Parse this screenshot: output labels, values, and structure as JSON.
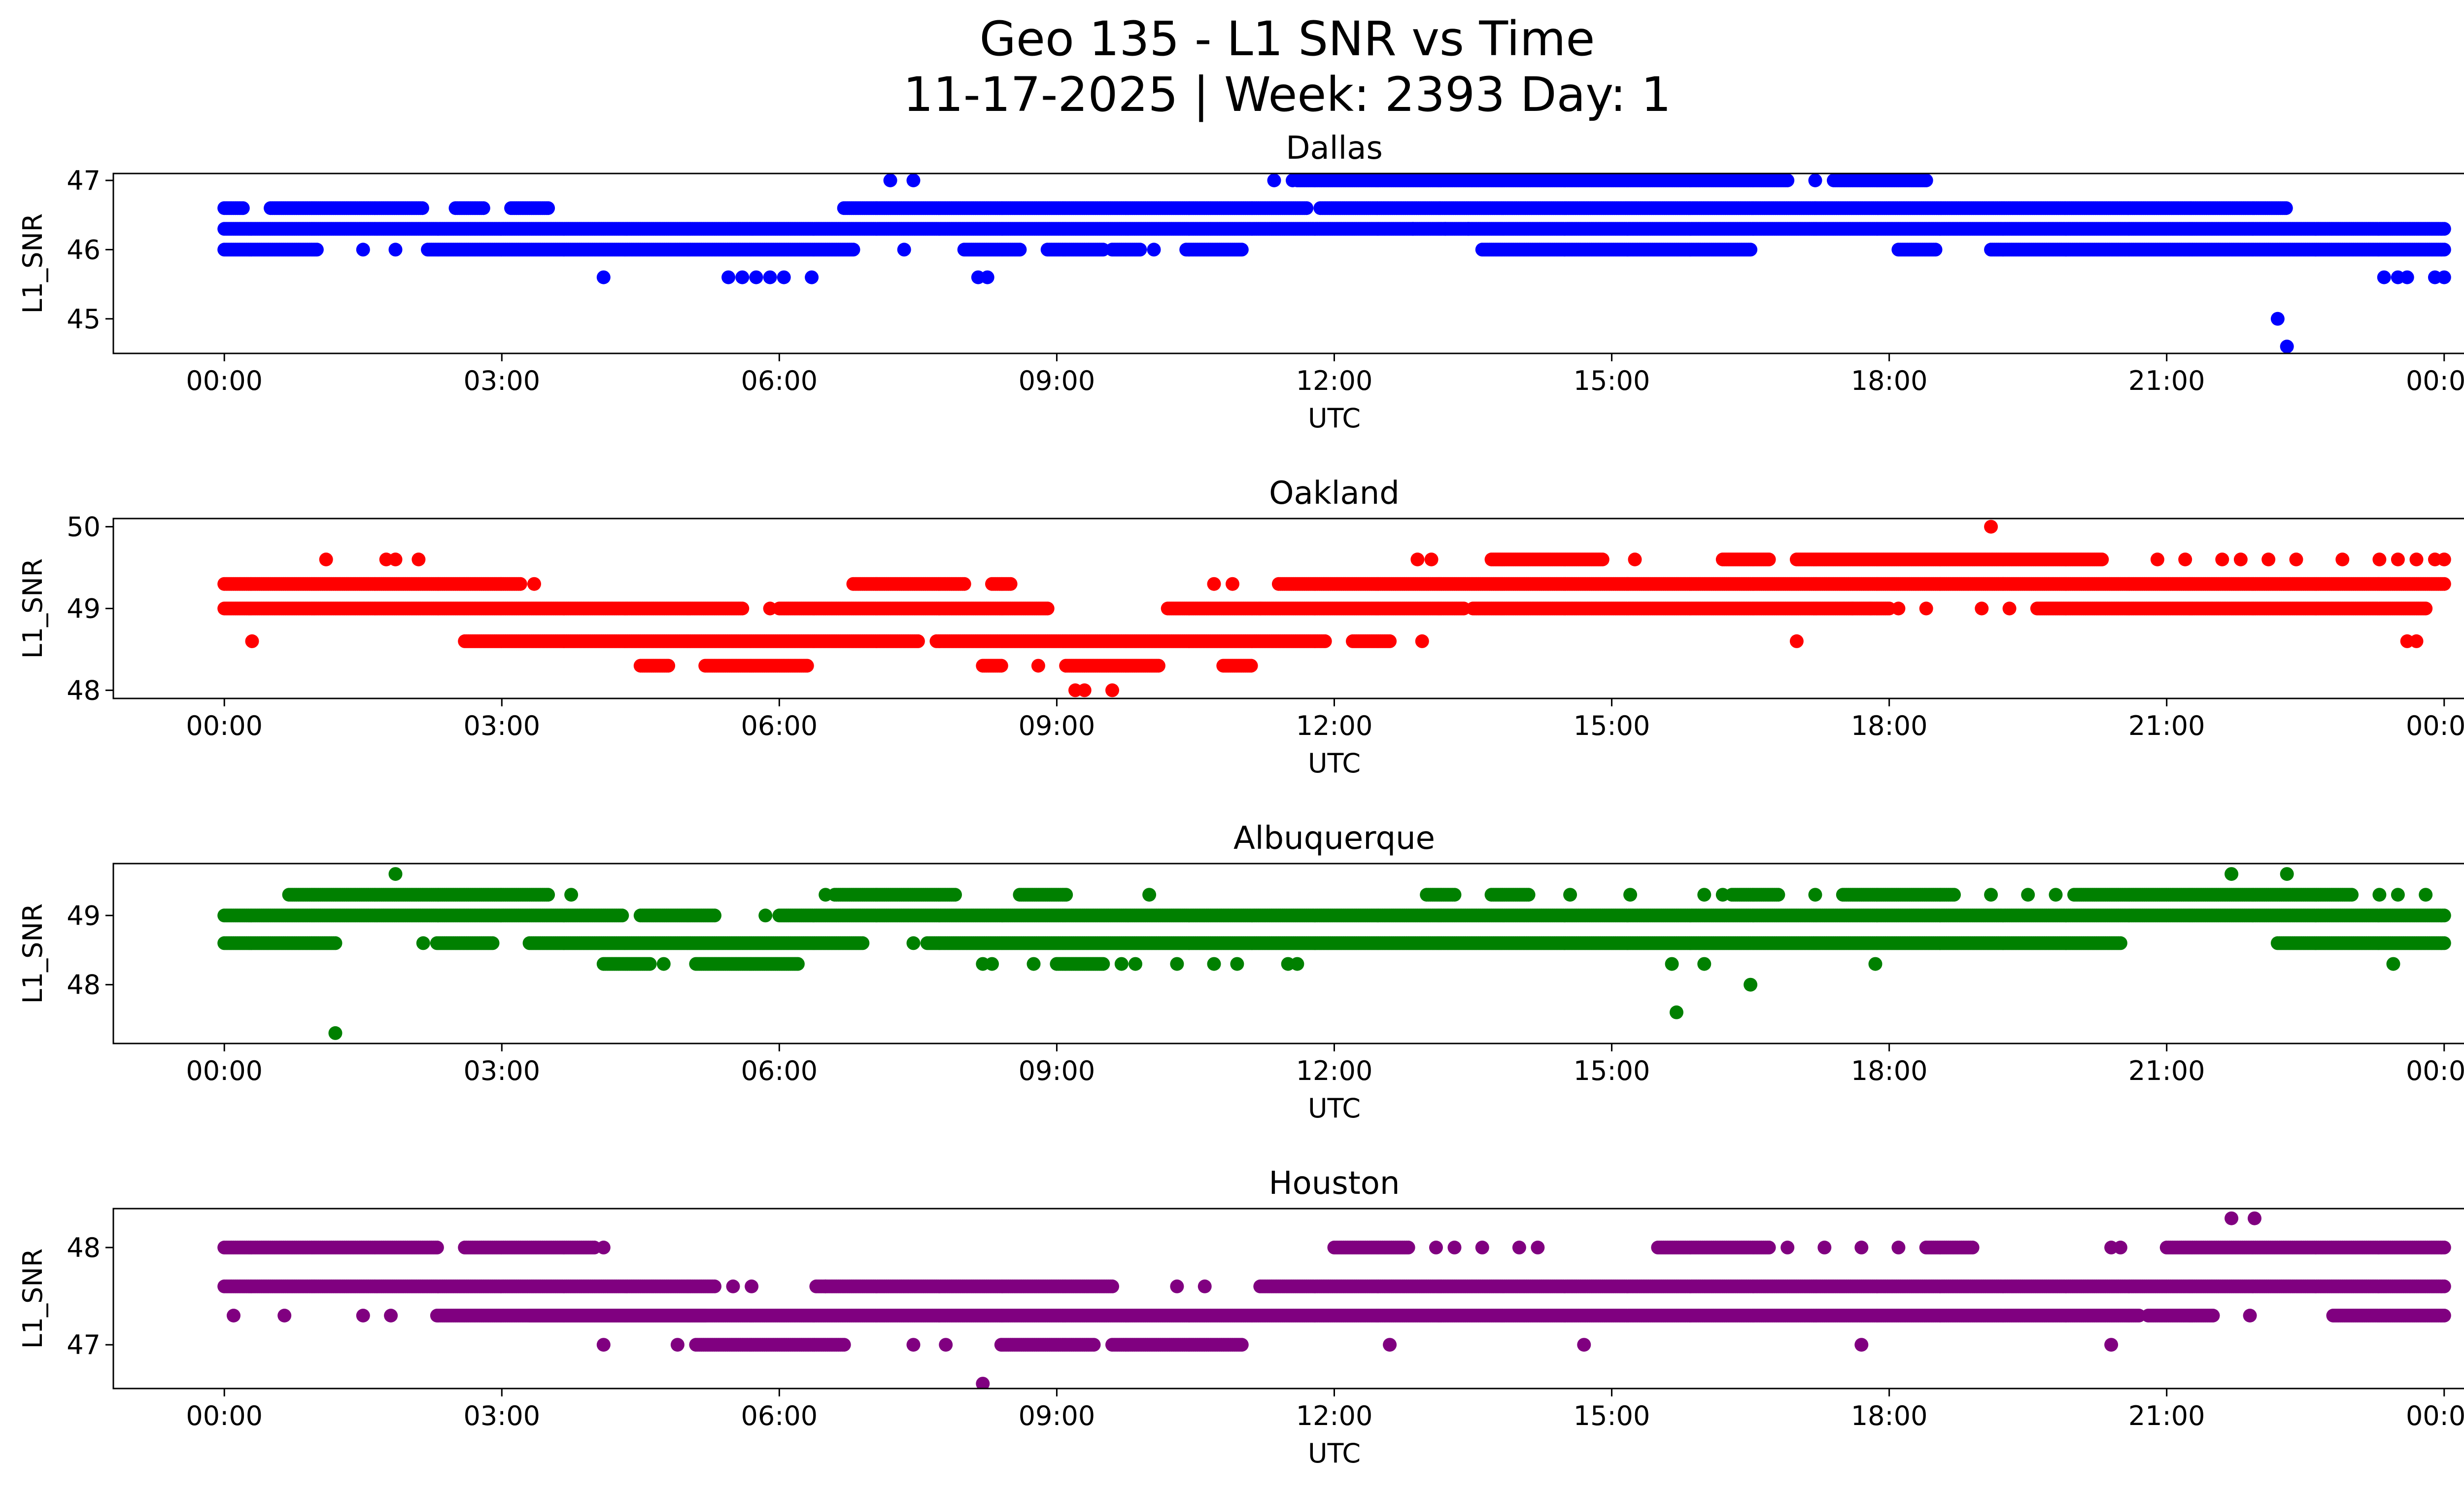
{
  "title_line1": "Geo 135 - L1 SNR vs Time",
  "title_line2": "11-17-2025 | Week: 2393 Day: 1",
  "chart_data": [
    {
      "type": "scatter",
      "title": "Dallas",
      "xlabel": "UTC",
      "ylabel": "L1_SNR",
      "color": "#0000ff",
      "xlim_hours": [
        -1.2,
        25.2
      ],
      "ylim": [
        44.5,
        47.1
      ],
      "xticks": [
        "00:00",
        "03:00",
        "06:00",
        "09:00",
        "12:00",
        "15:00",
        "18:00",
        "21:00",
        "00:00"
      ],
      "yticks": [
        "45",
        "46",
        "47"
      ],
      "levels": [
        {
          "y": 46.3,
          "ranges": [
            [
              0.0,
              24.0
            ]
          ]
        },
        {
          "y": 46.6,
          "ranges": [
            [
              0.0,
              0.2
            ],
            [
              0.5,
              2.15
            ],
            [
              2.5,
              2.8
            ],
            [
              3.1,
              3.5
            ],
            [
              6.7,
              11.7
            ],
            [
              11.85,
              22.3
            ]
          ]
        },
        {
          "y": 46.0,
          "ranges": [
            [
              0.0,
              1.0
            ],
            [
              2.2,
              6.8
            ],
            [
              8.0,
              8.6
            ],
            [
              8.9,
              9.5
            ],
            [
              9.6,
              9.9
            ],
            [
              10.4,
              11.0
            ],
            [
              13.6,
              16.5
            ],
            [
              18.1,
              18.5
            ],
            [
              19.1,
              24.0
            ]
          ]
        },
        {
          "y": 47.0,
          "ranges": [
            [
              11.6,
              16.9
            ],
            [
              17.4,
              18.4
            ]
          ]
        }
      ],
      "points": [
        {
          "x": 1.5,
          "y": 46.0
        },
        {
          "x": 1.85,
          "y": 46.0
        },
        {
          "x": 7.35,
          "y": 46.0
        },
        {
          "x": 10.05,
          "y": 46.0
        },
        {
          "x": 4.1,
          "y": 45.6
        },
        {
          "x": 5.45,
          "y": 45.6
        },
        {
          "x": 5.6,
          "y": 45.6
        },
        {
          "x": 5.75,
          "y": 45.6
        },
        {
          "x": 5.9,
          "y": 45.6
        },
        {
          "x": 6.05,
          "y": 45.6
        },
        {
          "x": 6.35,
          "y": 45.6
        },
        {
          "x": 8.15,
          "y": 45.6
        },
        {
          "x": 8.25,
          "y": 45.6
        },
        {
          "x": 7.2,
          "y": 47.0
        },
        {
          "x": 7.45,
          "y": 47.0
        },
        {
          "x": 11.35,
          "y": 47.0
        },
        {
          "x": 11.55,
          "y": 47.0
        },
        {
          "x": 17.2,
          "y": 47.0
        },
        {
          "x": 12.85,
          "y": 46.3
        },
        {
          "x": 13.2,
          "y": 46.3
        },
        {
          "x": 13.45,
          "y": 46.3
        },
        {
          "x": 22.2,
          "y": 45.0
        },
        {
          "x": 22.3,
          "y": 44.6
        },
        {
          "x": 23.35,
          "y": 45.6
        },
        {
          "x": 23.5,
          "y": 45.6
        },
        {
          "x": 23.6,
          "y": 45.6
        },
        {
          "x": 23.9,
          "y": 45.6
        },
        {
          "x": 24.0,
          "y": 45.6
        }
      ]
    },
    {
      "type": "scatter",
      "title": "Oakland",
      "xlabel": "UTC",
      "ylabel": "L1_SNR",
      "color": "#ff0000",
      "xlim_hours": [
        -1.2,
        25.2
      ],
      "ylim": [
        47.9,
        50.1
      ],
      "xticks": [
        "00:00",
        "03:00",
        "06:00",
        "09:00",
        "12:00",
        "15:00",
        "18:00",
        "21:00",
        "00:00"
      ],
      "yticks": [
        "48",
        "49",
        "50"
      ],
      "levels": [
        {
          "y": 49.0,
          "ranges": [
            [
              0.0,
              5.6
            ],
            [
              6.0,
              8.9
            ],
            [
              10.2,
              13.4
            ],
            [
              13.5,
              18.0
            ],
            [
              19.6,
              23.8
            ]
          ]
        },
        {
          "y": 49.3,
          "ranges": [
            [
              0.0,
              3.2
            ],
            [
              6.8,
              8.0
            ],
            [
              8.3,
              8.5
            ],
            [
              11.4,
              24.0
            ]
          ]
        },
        {
          "y": 48.6,
          "ranges": [
            [
              2.6,
              7.5
            ],
            [
              7.7,
              11.9
            ],
            [
              12.2,
              12.6
            ]
          ]
        },
        {
          "y": 48.3,
          "ranges": [
            [
              4.5,
              4.8
            ],
            [
              5.2,
              6.3
            ],
            [
              8.2,
              8.4
            ],
            [
              9.1,
              10.1
            ],
            [
              10.8,
              11.1
            ]
          ]
        },
        {
          "y": 49.6,
          "ranges": [
            [
              13.7,
              14.9
            ],
            [
              16.2,
              16.7
            ],
            [
              17.0,
              20.3
            ]
          ]
        }
      ],
      "points": [
        {
          "x": 0.3,
          "y": 48.6
        },
        {
          "x": 1.1,
          "y": 49.6
        },
        {
          "x": 1.75,
          "y": 49.6
        },
        {
          "x": 1.85,
          "y": 49.6
        },
        {
          "x": 2.1,
          "y": 49.6
        },
        {
          "x": 3.35,
          "y": 49.3
        },
        {
          "x": 5.9,
          "y": 49.0
        },
        {
          "x": 8.8,
          "y": 48.3
        },
        {
          "x": 9.2,
          "y": 48.0
        },
        {
          "x": 9.3,
          "y": 48.0
        },
        {
          "x": 9.6,
          "y": 48.0
        },
        {
          "x": 10.7,
          "y": 49.3
        },
        {
          "x": 10.9,
          "y": 49.3
        },
        {
          "x": 11.2,
          "y": 49.0
        },
        {
          "x": 12.9,
          "y": 49.6
        },
        {
          "x": 13.05,
          "y": 49.6
        },
        {
          "x": 12.95,
          "y": 48.6
        },
        {
          "x": 15.25,
          "y": 49.6
        },
        {
          "x": 17.0,
          "y": 48.6
        },
        {
          "x": 17.6,
          "y": 49.0
        },
        {
          "x": 17.8,
          "y": 49.0
        },
        {
          "x": 18.1,
          "y": 49.0
        },
        {
          "x": 18.4,
          "y": 49.0
        },
        {
          "x": 19.0,
          "y": 49.0
        },
        {
          "x": 19.3,
          "y": 49.0
        },
        {
          "x": 19.1,
          "y": 50.0
        },
        {
          "x": 20.9,
          "y": 49.6
        },
        {
          "x": 21.2,
          "y": 49.6
        },
        {
          "x": 21.6,
          "y": 49.6
        },
        {
          "x": 21.8,
          "y": 49.6
        },
        {
          "x": 22.1,
          "y": 49.6
        },
        {
          "x": 22.4,
          "y": 49.6
        },
        {
          "x": 22.9,
          "y": 49.6
        },
        {
          "x": 23.3,
          "y": 49.6
        },
        {
          "x": 23.5,
          "y": 49.6
        },
        {
          "x": 23.7,
          "y": 49.6
        },
        {
          "x": 23.9,
          "y": 49.6
        },
        {
          "x": 24.0,
          "y": 49.6
        },
        {
          "x": 23.6,
          "y": 48.6
        },
        {
          "x": 23.7,
          "y": 48.6
        }
      ]
    },
    {
      "type": "scatter",
      "title": "Albuquerque",
      "xlabel": "UTC",
      "ylabel": "L1_SNR",
      "color": "#008000",
      "xlim_hours": [
        -1.2,
        25.2
      ],
      "ylim": [
        47.15,
        49.75
      ],
      "xticks": [
        "00:00",
        "03:00",
        "06:00",
        "09:00",
        "12:00",
        "15:00",
        "18:00",
        "21:00",
        "00:00"
      ],
      "yticks": [
        "48",
        "49"
      ],
      "levels": [
        {
          "y": 49.0,
          "ranges": [
            [
              0.0,
              4.3
            ],
            [
              4.5,
              5.3
            ],
            [
              6.0,
              24.0
            ]
          ]
        },
        {
          "y": 48.6,
          "ranges": [
            [
              0.0,
              1.2
            ],
            [
              2.3,
              2.9
            ],
            [
              3.3,
              6.9
            ],
            [
              7.6,
              20.5
            ],
            [
              22.2,
              24.0
            ]
          ]
        },
        {
          "y": 49.3,
          "ranges": [
            [
              0.7,
              3.5
            ],
            [
              6.6,
              7.9
            ],
            [
              8.6,
              9.1
            ],
            [
              13.0,
              13.3
            ],
            [
              13.7,
              14.1
            ],
            [
              16.3,
              16.8
            ],
            [
              17.5,
              18.7
            ],
            [
              20.0,
              23.0
            ]
          ]
        },
        {
          "y": 48.3,
          "ranges": [
            [
              4.1,
              4.6
            ],
            [
              5.1,
              6.2
            ],
            [
              9.0,
              9.5
            ]
          ]
        }
      ],
      "points": [
        {
          "x": 1.2,
          "y": 47.3
        },
        {
          "x": 1.85,
          "y": 49.6
        },
        {
          "x": 2.15,
          "y": 48.6
        },
        {
          "x": 3.75,
          "y": 49.3
        },
        {
          "x": 4.75,
          "y": 48.3
        },
        {
          "x": 5.85,
          "y": 49.0
        },
        {
          "x": 6.5,
          "y": 49.3
        },
        {
          "x": 7.45,
          "y": 48.6
        },
        {
          "x": 8.2,
          "y": 48.3
        },
        {
          "x": 8.3,
          "y": 48.3
        },
        {
          "x": 8.75,
          "y": 48.3
        },
        {
          "x": 9.7,
          "y": 48.3
        },
        {
          "x": 9.85,
          "y": 48.3
        },
        {
          "x": 10.0,
          "y": 49.3
        },
        {
          "x": 10.3,
          "y": 48.3
        },
        {
          "x": 10.7,
          "y": 48.3
        },
        {
          "x": 10.95,
          "y": 48.3
        },
        {
          "x": 11.5,
          "y": 48.3
        },
        {
          "x": 11.6,
          "y": 48.3
        },
        {
          "x": 14.55,
          "y": 49.3
        },
        {
          "x": 15.2,
          "y": 49.3
        },
        {
          "x": 15.65,
          "y": 48.3
        },
        {
          "x": 15.7,
          "y": 47.6
        },
        {
          "x": 16.0,
          "y": 48.3
        },
        {
          "x": 16.0,
          "y": 49.3
        },
        {
          "x": 16.2,
          "y": 49.3
        },
        {
          "x": 16.5,
          "y": 48.0
        },
        {
          "x": 17.2,
          "y": 49.3
        },
        {
          "x": 17.85,
          "y": 48.3
        },
        {
          "x": 19.1,
          "y": 49.3
        },
        {
          "x": 19.5,
          "y": 49.3
        },
        {
          "x": 19.8,
          "y": 49.3
        },
        {
          "x": 21.7,
          "y": 49.6
        },
        {
          "x": 22.3,
          "y": 49.6
        },
        {
          "x": 23.3,
          "y": 49.3
        },
        {
          "x": 23.5,
          "y": 49.3
        },
        {
          "x": 23.8,
          "y": 49.3
        },
        {
          "x": 23.45,
          "y": 48.3
        }
      ]
    },
    {
      "type": "scatter",
      "title": "Houston",
      "xlabel": "UTC",
      "ylabel": "L1_SNR",
      "color": "#800080",
      "xlim_hours": [
        -1.2,
        25.2
      ],
      "ylim": [
        46.55,
        48.4
      ],
      "xticks": [
        "00:00",
        "03:00",
        "06:00",
        "09:00",
        "12:00",
        "15:00",
        "18:00",
        "21:00",
        "00:00"
      ],
      "yticks": [
        "47",
        "48"
      ],
      "levels": [
        {
          "y": 47.6,
          "ranges": [
            [
              0.0,
              5.3
            ],
            [
              6.4,
              9.6
            ],
            [
              11.2,
              24.0
            ]
          ]
        },
        {
          "y": 48.0,
          "ranges": [
            [
              0.0,
              2.3
            ],
            [
              2.6,
              4.0
            ],
            [
              12.0,
              12.8
            ],
            [
              15.5,
              16.7
            ],
            [
              18.4,
              18.9
            ],
            [
              21.0,
              24.0
            ]
          ]
        },
        {
          "y": 47.3,
          "ranges": [
            [
              2.3,
              5.2
            ],
            [
              3.3,
              20.7
            ],
            [
              20.8,
              21.5
            ],
            [
              22.8,
              24.0
            ]
          ]
        },
        {
          "y": 47.0,
          "ranges": [
            [
              5.1,
              6.7
            ],
            [
              8.4,
              9.4
            ],
            [
              9.6,
              11.0
            ]
          ]
        }
      ],
      "points": [
        {
          "x": 0.1,
          "y": 47.3
        },
        {
          "x": 0.65,
          "y": 47.3
        },
        {
          "x": 1.5,
          "y": 47.3
        },
        {
          "x": 1.8,
          "y": 47.3
        },
        {
          "x": 4.1,
          "y": 48.0
        },
        {
          "x": 4.1,
          "y": 47.0
        },
        {
          "x": 4.9,
          "y": 47.0
        },
        {
          "x": 5.5,
          "y": 47.6
        },
        {
          "x": 5.7,
          "y": 47.6
        },
        {
          "x": 6.5,
          "y": 47.6
        },
        {
          "x": 7.45,
          "y": 47.0
        },
        {
          "x": 7.8,
          "y": 47.0
        },
        {
          "x": 8.2,
          "y": 46.6
        },
        {
          "x": 10.3,
          "y": 47.6
        },
        {
          "x": 10.6,
          "y": 47.6
        },
        {
          "x": 12.6,
          "y": 47.0
        },
        {
          "x": 13.1,
          "y": 48.0
        },
        {
          "x": 13.3,
          "y": 48.0
        },
        {
          "x": 13.6,
          "y": 48.0
        },
        {
          "x": 14.0,
          "y": 48.0
        },
        {
          "x": 14.2,
          "y": 48.0
        },
        {
          "x": 14.7,
          "y": 47.0
        },
        {
          "x": 16.9,
          "y": 48.0
        },
        {
          "x": 17.3,
          "y": 48.0
        },
        {
          "x": 17.7,
          "y": 48.0
        },
        {
          "x": 17.7,
          "y": 47.0
        },
        {
          "x": 18.1,
          "y": 48.0
        },
        {
          "x": 20.4,
          "y": 47.0
        },
        {
          "x": 20.4,
          "y": 48.0
        },
        {
          "x": 20.5,
          "y": 48.0
        },
        {
          "x": 21.7,
          "y": 48.3
        },
        {
          "x": 21.95,
          "y": 48.3
        },
        {
          "x": 21.9,
          "y": 47.3
        }
      ]
    }
  ]
}
